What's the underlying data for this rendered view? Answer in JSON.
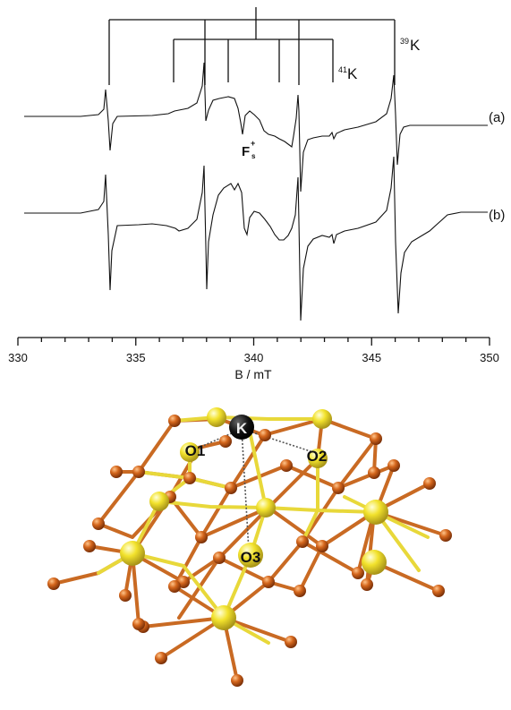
{
  "spectrum": {
    "x_axis": {
      "label": "B / mT",
      "ticks": [
        "330",
        "335",
        "340",
        "345",
        "350"
      ],
      "min": 330,
      "max": 350
    },
    "traces": [
      {
        "label": "(a)"
      },
      {
        "label": "(b)"
      }
    ],
    "annotations": {
      "k39_mass": "39",
      "k39_element": "K",
      "k41_mass": "41",
      "k41_element": "K",
      "center_main": "F",
      "center_super": "+",
      "center_sub": "s"
    },
    "k39_lines_mT": [
      333.7,
      337.8,
      341.9,
      346.1
    ],
    "k41_lines_mT": [
      336.5,
      338.8,
      341.0,
      343.3
    ]
  },
  "structure": {
    "atoms": [
      "K",
      "O1",
      "O2",
      "O3"
    ],
    "colors": {
      "oxygen": "#d4661c",
      "metal": "#f2e22c",
      "bond_a": "#c96a23",
      "bond_b": "#e8d83a",
      "k_atom": "#111111"
    }
  }
}
